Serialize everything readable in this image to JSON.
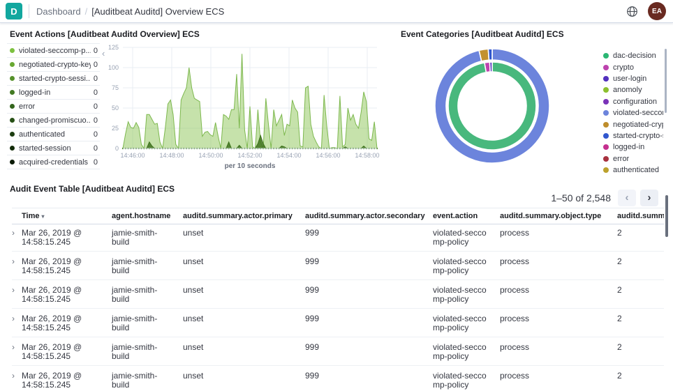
{
  "topbar": {
    "logo_letter": "D",
    "logo_color": "#12A79F",
    "breadcrumb_root": "Dashboard",
    "breadcrumb_separator": "/",
    "breadcrumb_current": "[Auditbeat Auditd] Overview ECS",
    "avatar_initials": "EA",
    "avatar_color": "#692A21"
  },
  "event_actions_panel": {
    "title": "Event Actions [Auditbeat Auditd Overview] ECS",
    "collapse_icon": "‹",
    "legend": [
      {
        "label": "violated-seccomp-p...",
        "value": 0,
        "color": "#7DC140"
      },
      {
        "label": "negotiated-crypto-key",
        "value": 0,
        "color": "#68A832"
      },
      {
        "label": "started-crypto-sessi...",
        "value": 0,
        "color": "#55912B"
      },
      {
        "label": "logged-in",
        "value": 0,
        "color": "#437A23"
      },
      {
        "label": "error",
        "value": 0,
        "color": "#33651C"
      },
      {
        "label": "changed-promiscuo...",
        "value": 0,
        "color": "#275016"
      },
      {
        "label": "authenticated",
        "value": 0,
        "color": "#1C3D10"
      },
      {
        "label": "started-session",
        "value": 0,
        "color": "#122B09"
      },
      {
        "label": "acquired-credentials",
        "value": 0,
        "color": "#0A1A05"
      }
    ],
    "chart_data": {
      "type": "area",
      "xlabel": "per 10 seconds",
      "x_start": "14:45:30",
      "x_end": "14:58:30",
      "x_ticks": [
        "14:46:00",
        "14:48:00",
        "14:50:00",
        "14:52:00",
        "14:54:00",
        "14:56:00",
        "14:58:00"
      ],
      "y_ticks": [
        0,
        25,
        50,
        75,
        100,
        125
      ],
      "ylim": [
        0,
        125
      ],
      "grid": true,
      "baseline_dot_color": "#55912B",
      "series": [
        {
          "name": "violated-seccomp-policy",
          "color": "#7DB84E",
          "fill": "rgba(141,198,88,0.5)",
          "values": [
            0,
            18,
            33,
            26,
            25,
            32,
            26,
            5,
            0,
            42,
            42,
            36,
            30,
            31,
            8,
            0,
            25,
            55,
            60,
            42,
            5,
            0,
            60,
            68,
            75,
            100,
            75,
            62,
            60,
            58,
            15,
            20,
            21,
            17,
            15,
            32,
            15,
            0,
            42,
            40,
            36,
            48,
            48,
            92,
            25,
            117,
            23,
            0,
            52,
            2,
            0,
            48,
            8,
            0,
            62,
            30,
            0,
            48,
            28,
            35,
            42,
            16,
            30,
            28,
            60,
            50,
            45,
            3,
            2,
            75,
            77,
            30,
            15,
            8,
            2,
            0,
            66,
            28,
            0,
            1,
            1,
            0,
            65,
            2,
            5,
            50,
            35,
            42,
            30,
            25,
            45,
            70,
            58,
            12,
            10,
            33,
            0
          ]
        },
        {
          "name": "negotiated-crypto-key",
          "color": "#3E721D",
          "fill": "rgba(62,114,29,0.85)",
          "values": [
            0,
            0,
            0,
            0,
            0,
            0,
            0,
            0,
            0,
            0,
            8,
            3,
            0,
            0,
            0,
            0,
            0,
            0,
            0,
            0,
            0,
            0,
            0,
            0,
            0,
            0,
            0,
            0,
            0,
            0,
            0,
            0,
            0,
            0,
            0,
            0,
            0,
            0,
            0,
            0,
            8,
            0,
            0,
            0,
            4,
            0,
            0,
            0,
            0,
            0,
            0,
            6,
            16,
            6,
            0,
            0,
            0,
            0,
            0,
            0,
            3,
            2,
            0,
            0,
            0,
            0,
            0,
            0,
            0,
            0,
            0,
            0,
            0,
            0,
            0,
            0,
            0,
            0,
            0,
            0,
            0,
            0,
            0,
            0,
            2,
            0,
            0,
            0,
            0,
            0,
            0,
            3,
            0,
            0,
            0,
            0,
            0
          ]
        }
      ]
    }
  },
  "event_categories_panel": {
    "title": "Event Categories [Auditbeat Auditd] ECS",
    "chart_data": {
      "type": "pie",
      "donut": true,
      "legend_position": "right",
      "rings": [
        {
          "position": "inner",
          "slices": [
            {
              "label": "dac-decision",
              "pct": 97.2,
              "color": "#48B87D"
            },
            {
              "label": "crypto",
              "pct": 1.9,
              "color": "#BD43AE"
            },
            {
              "label": "user-login",
              "pct": 0.9,
              "color": "#5230BE"
            }
          ]
        },
        {
          "position": "outer",
          "slices": [
            {
              "label": "violated-seccomp-policy",
              "pct": 96.3,
              "color": "#6C84DC"
            },
            {
              "label": "negotiated-crypto-key",
              "pct": 2.6,
              "color": "#C2912F"
            },
            {
              "label": "started-crypto-session",
              "pct": 1.1,
              "color": "#3157CE"
            }
          ]
        }
      ],
      "legend": [
        {
          "label": "dac-decision",
          "color": "#2BB673"
        },
        {
          "label": "crypto",
          "color": "#BD43AE"
        },
        {
          "label": "user-login",
          "color": "#5230BE"
        },
        {
          "label": "anomoly",
          "color": "#8CBF2F"
        },
        {
          "label": "configuration",
          "color": "#7A33B8"
        },
        {
          "label": "violated-seccomp...",
          "color": "#6C84DC"
        },
        {
          "label": "negotiated-crypto...",
          "color": "#BE8D2C"
        },
        {
          "label": "started-crypto-se...",
          "color": "#3157CE"
        },
        {
          "label": "logged-in",
          "color": "#C5308F"
        },
        {
          "label": "error",
          "color": "#A8323F"
        },
        {
          "label": "authenticated",
          "color": "#BCA12C"
        }
      ]
    }
  },
  "table_panel": {
    "title": "Audit Event Table [Auditbeat Auditd] ECS",
    "pagination": {
      "range_label": "1–50 of 2,548",
      "prev_icon": "‹",
      "next_icon": "›"
    },
    "sort_icon": "▾",
    "expand_icon": "›",
    "columns": [
      "Time",
      "agent.hostname",
      "auditd.summary.actor.primary",
      "auditd.summary.actor.secondary",
      "event.action",
      "auditd.summary.object.type",
      "auditd.summary"
    ],
    "sorted_column": "Time",
    "rows": [
      {
        "time": "Mar 26, 2019 @ 14:58:15.245",
        "agent_hostname": "jamie-smith-build",
        "actor_primary": "unset",
        "actor_secondary": "999",
        "event_action": "violated-seccomp-policy",
        "object_type": "process",
        "summary": "2"
      },
      {
        "time": "Mar 26, 2019 @ 14:58:15.245",
        "agent_hostname": "jamie-smith-build",
        "actor_primary": "unset",
        "actor_secondary": "999",
        "event_action": "violated-seccomp-policy",
        "object_type": "process",
        "summary": "2"
      },
      {
        "time": "Mar 26, 2019 @ 14:58:15.245",
        "agent_hostname": "jamie-smith-build",
        "actor_primary": "unset",
        "actor_secondary": "999",
        "event_action": "violated-seccomp-policy",
        "object_type": "process",
        "summary": "2"
      },
      {
        "time": "Mar 26, 2019 @ 14:58:15.245",
        "agent_hostname": "jamie-smith-build",
        "actor_primary": "unset",
        "actor_secondary": "999",
        "event_action": "violated-seccomp-policy",
        "object_type": "process",
        "summary": "2"
      },
      {
        "time": "Mar 26, 2019 @ 14:58:15.245",
        "agent_hostname": "jamie-smith-build",
        "actor_primary": "unset",
        "actor_secondary": "999",
        "event_action": "violated-seccomp-policy",
        "object_type": "process",
        "summary": "2"
      },
      {
        "time": "Mar 26, 2019 @ 14:58:15.245",
        "agent_hostname": "jamie-smith-build",
        "actor_primary": "unset",
        "actor_secondary": "999",
        "event_action": "violated-seccomp-policy",
        "object_type": "process",
        "summary": "2"
      }
    ]
  }
}
